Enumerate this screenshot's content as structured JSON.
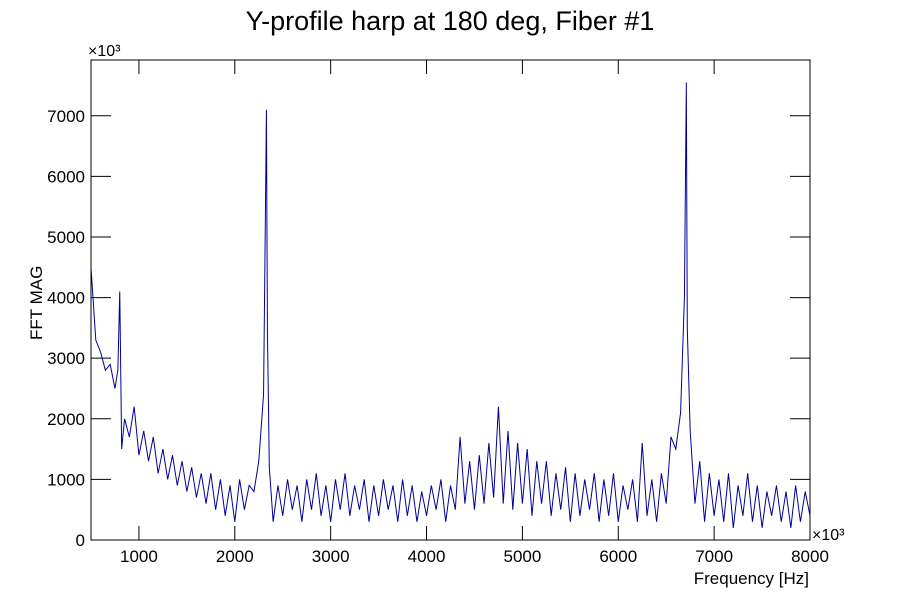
{
  "chart_data": {
    "type": "line",
    "title": "Y-profile harp at 180 deg, Fiber #1",
    "x_label": "Frequency [Hz]",
    "y_label": "FFT MAG",
    "x_multiplier": "×10³",
    "y_multiplier": "×10³",
    "xlim": [
      500,
      8000
    ],
    "ylim": [
      0,
      7920
    ],
    "xticks": [
      1000,
      2000,
      3000,
      4000,
      5000,
      6000,
      7000,
      8000
    ],
    "yticks": [
      0,
      1000,
      2000,
      3000,
      4000,
      5000,
      6000,
      7000
    ],
    "grid": false,
    "x": [
      500,
      550,
      600,
      650,
      700,
      750,
      780,
      800,
      820,
      850,
      900,
      950,
      1000,
      1050,
      1100,
      1150,
      1200,
      1250,
      1300,
      1350,
      1400,
      1450,
      1500,
      1550,
      1600,
      1650,
      1700,
      1750,
      1800,
      1850,
      1900,
      1950,
      2000,
      2050,
      2100,
      2150,
      2200,
      2250,
      2300,
      2320,
      2330,
      2340,
      2360,
      2400,
      2450,
      2500,
      2550,
      2600,
      2650,
      2700,
      2750,
      2800,
      2850,
      2900,
      2950,
      3000,
      3050,
      3100,
      3150,
      3200,
      3250,
      3300,
      3350,
      3400,
      3450,
      3500,
      3550,
      3600,
      3650,
      3700,
      3750,
      3800,
      3850,
      3900,
      3950,
      4000,
      4050,
      4100,
      4150,
      4200,
      4250,
      4300,
      4350,
      4400,
      4450,
      4500,
      4550,
      4600,
      4650,
      4700,
      4750,
      4800,
      4850,
      4900,
      4950,
      5000,
      5050,
      5100,
      5150,
      5200,
      5250,
      5300,
      5350,
      5400,
      5450,
      5500,
      5550,
      5600,
      5650,
      5700,
      5750,
      5800,
      5850,
      5900,
      5950,
      6000,
      6050,
      6100,
      6150,
      6200,
      6250,
      6300,
      6350,
      6400,
      6450,
      6500,
      6550,
      6600,
      6650,
      6690,
      6710,
      6720,
      6750,
      6800,
      6850,
      6900,
      6950,
      7000,
      7050,
      7100,
      7150,
      7200,
      7250,
      7300,
      7350,
      7400,
      7450,
      7500,
      7550,
      7600,
      7650,
      7700,
      7750,
      7800,
      7850,
      7900,
      7950,
      8000
    ],
    "series": [
      {
        "color": "#000099",
        "values": [
          4500,
          3300,
          3100,
          2800,
          2900,
          2500,
          2800,
          4100,
          1500,
          2000,
          1700,
          2200,
          1400,
          1800,
          1300,
          1700,
          1100,
          1500,
          1000,
          1400,
          900,
          1300,
          800,
          1200,
          700,
          1100,
          600,
          1100,
          500,
          1000,
          400,
          900,
          300,
          1000,
          500,
          900,
          800,
          1300,
          2400,
          5500,
          7100,
          3500,
          1200,
          300,
          900,
          400,
          1000,
          500,
          900,
          300,
          1000,
          500,
          1100,
          400,
          900,
          300,
          1000,
          500,
          1100,
          400,
          900,
          500,
          1000,
          300,
          900,
          400,
          1000,
          500,
          900,
          300,
          1000,
          400,
          900,
          300,
          800,
          400,
          900,
          500,
          1000,
          300,
          900,
          500,
          1700,
          600,
          1300,
          500,
          1400,
          600,
          1600,
          700,
          2200,
          600,
          1800,
          500,
          1600,
          600,
          1500,
          400,
          1300,
          600,
          1300,
          400,
          1100,
          500,
          1200,
          300,
          1100,
          400,
          1000,
          500,
          1100,
          300,
          1000,
          400,
          1100,
          300,
          900,
          500,
          1000,
          300,
          1600,
          400,
          1000,
          300,
          1100,
          600,
          1700,
          1500,
          2100,
          4000,
          7550,
          3500,
          1800,
          600,
          1300,
          300,
          1100,
          400,
          1000,
          300,
          1100,
          200,
          900,
          400,
          1100,
          300,
          900,
          200,
          800,
          400,
          900,
          300,
          800,
          200,
          900,
          300,
          800,
          400
        ]
      }
    ]
  }
}
